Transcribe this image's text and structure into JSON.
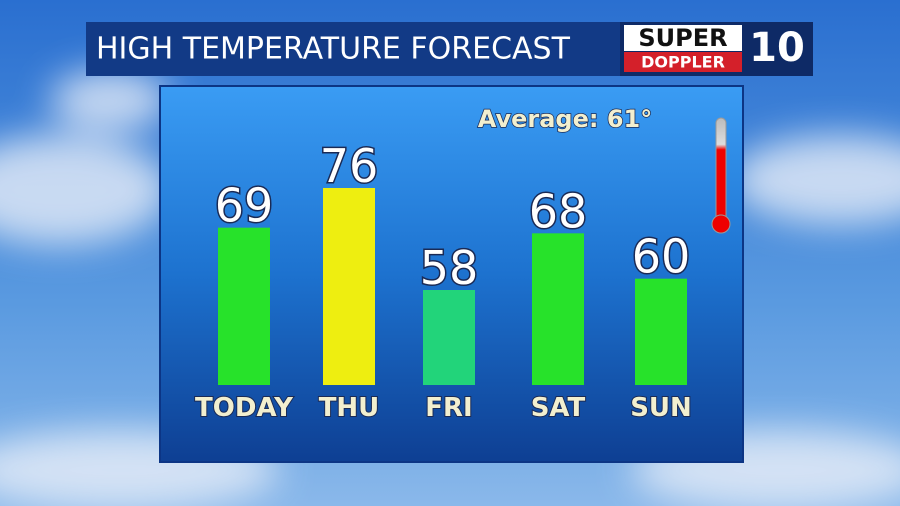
{
  "chart_data": {
    "type": "bar",
    "title": "HIGH TEMPERATURE FORECAST",
    "annotation": "Average: 61°",
    "categories": [
      "TODAY",
      "THU",
      "FRI",
      "SAT",
      "SUN"
    ],
    "values": [
      69,
      76,
      58,
      68,
      60
    ],
    "colors": [
      "#27e22a",
      "#eeee10",
      "#22d47a",
      "#27e22a",
      "#27e22a"
    ]
  },
  "logo": {
    "top": "SUPER",
    "bottom": "DOPPLER",
    "mark": "10"
  }
}
